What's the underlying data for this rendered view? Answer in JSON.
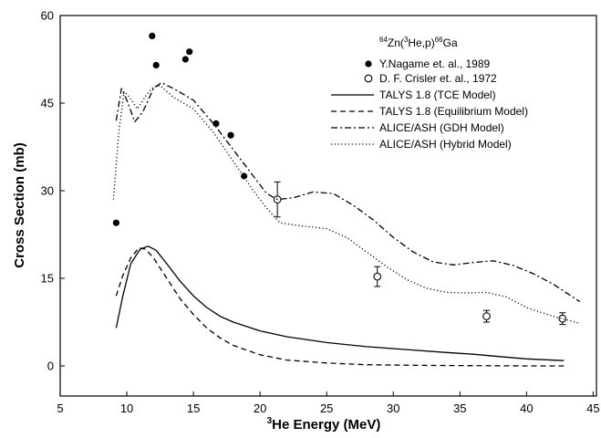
{
  "chart_data": {
    "type": "line",
    "title": "",
    "xlabel_sup": "3",
    "xlabel_main": "He Energy (MeV)",
    "ylabel": "Cross Section (mb)",
    "xlim": [
      5,
      45
    ],
    "ylim": [
      -2,
      60
    ],
    "xticks": [
      5,
      10,
      15,
      20,
      25,
      30,
      35,
      40,
      45
    ],
    "yticks": [
      0,
      15,
      30,
      45,
      60
    ],
    "grid": false,
    "legend_position": "top-right",
    "legend_title": {
      "parts": [
        {
          "t": "64",
          "sup": true
        },
        {
          "t": "Zn(",
          "sup": false
        },
        {
          "t": "3",
          "sup": true
        },
        {
          "t": "He,p)",
          "sup": false
        },
        {
          "t": "66",
          "sup": true
        },
        {
          "t": "Ga",
          "sup": false
        }
      ]
    },
    "series": [
      {
        "name": "Y.Nagame et. al., 1989",
        "kind": "scatter",
        "marker": "filled-circle",
        "x": [
          9.2,
          11.9,
          12.2,
          14.4,
          14.7,
          16.7,
          17.8,
          18.8
        ],
        "y": [
          24.5,
          56.5,
          51.5,
          52.5,
          53.8,
          41.5,
          39.5,
          32.5
        ]
      },
      {
        "name": "D. F. Crisler et. al., 1972",
        "kind": "scatter",
        "marker": "open-circle",
        "x": [
          21.3,
          28.8,
          37.0,
          42.7
        ],
        "y": [
          28.5,
          15.3,
          8.5,
          8.1
        ],
        "err": [
          3.0,
          1.7,
          1.0,
          1.0
        ]
      },
      {
        "name": "TALYS 1.8 (TCE Model)",
        "kind": "line",
        "dash": "solid",
        "x": [
          9.2,
          9.7,
          10.3,
          11.0,
          11.6,
          12.2,
          13.0,
          14.0,
          15.0,
          16.0,
          17.0,
          18.0,
          20.0,
          22.0,
          25.0,
          28.0,
          31.0,
          34.0,
          36.0,
          38.0,
          40.0,
          42.8
        ],
        "y": [
          6.5,
          12.0,
          17.5,
          20.0,
          20.5,
          19.8,
          17.5,
          14.5,
          12.0,
          10.0,
          8.5,
          7.5,
          6.0,
          5.0,
          4.0,
          3.3,
          2.8,
          2.3,
          2.0,
          1.6,
          1.2,
          0.9
        ]
      },
      {
        "name": "TALYS 1.8 (Equilibrium Model)",
        "kind": "line",
        "dash": "dashed",
        "x": [
          9.2,
          9.7,
          10.3,
          10.9,
          11.4,
          12.0,
          13.0,
          14.0,
          15.0,
          16.0,
          17.0,
          18.0,
          20.0,
          22.0,
          25.0,
          28.0,
          32.0,
          36.0,
          40.0,
          42.8
        ],
        "y": [
          12.0,
          15.5,
          18.5,
          20.2,
          20.0,
          18.5,
          15.0,
          11.5,
          8.8,
          6.5,
          4.8,
          3.5,
          1.9,
          1.0,
          0.5,
          0.2,
          0.1,
          0.05,
          0.0,
          0.0
        ]
      },
      {
        "name": "ALICE/ASH (GDH Model)",
        "kind": "line",
        "dash": "dashdot",
        "x": [
          9.2,
          9.6,
          10.0,
          10.6,
          11.2,
          12.0,
          12.6,
          13.5,
          15.0,
          16.5,
          18.0,
          19.5,
          20.5,
          21.3,
          22.5,
          24.0,
          25.5,
          27.0,
          28.5,
          30.0,
          31.5,
          33.0,
          34.5,
          36.0,
          37.5,
          39.0,
          40.5,
          42.0,
          44.0
        ],
        "y": [
          42.0,
          47.5,
          45.5,
          41.8,
          43.5,
          47.5,
          48.5,
          47.5,
          45.5,
          41.5,
          37.0,
          32.5,
          29.5,
          28.5,
          28.8,
          29.8,
          29.5,
          27.5,
          25.0,
          22.0,
          19.5,
          17.8,
          17.3,
          17.7,
          18.0,
          17.2,
          15.8,
          14.0,
          11.0
        ]
      },
      {
        "name": "ALICE/ASH (Hybrid Model)",
        "kind": "line",
        "dash": "dotted",
        "x": [
          9.0,
          9.4,
          9.8,
          10.2,
          10.8,
          11.5,
          12.0,
          12.5,
          13.5,
          15.0,
          16.5,
          18.0,
          19.5,
          20.5,
          21.5,
          23.0,
          25.0,
          26.5,
          28.0,
          29.5,
          31.0,
          32.5,
          34.0,
          35.5,
          37.0,
          38.5,
          40.0,
          42.0,
          44.0
        ],
        "y": [
          28.5,
          40.0,
          47.0,
          46.0,
          44.0,
          46.5,
          47.8,
          48.0,
          46.0,
          44.0,
          40.0,
          35.0,
          30.0,
          27.0,
          24.5,
          24.0,
          23.5,
          22.0,
          19.5,
          17.0,
          14.8,
          13.3,
          12.6,
          12.5,
          12.6,
          11.8,
          10.0,
          8.5,
          7.3
        ]
      }
    ]
  }
}
